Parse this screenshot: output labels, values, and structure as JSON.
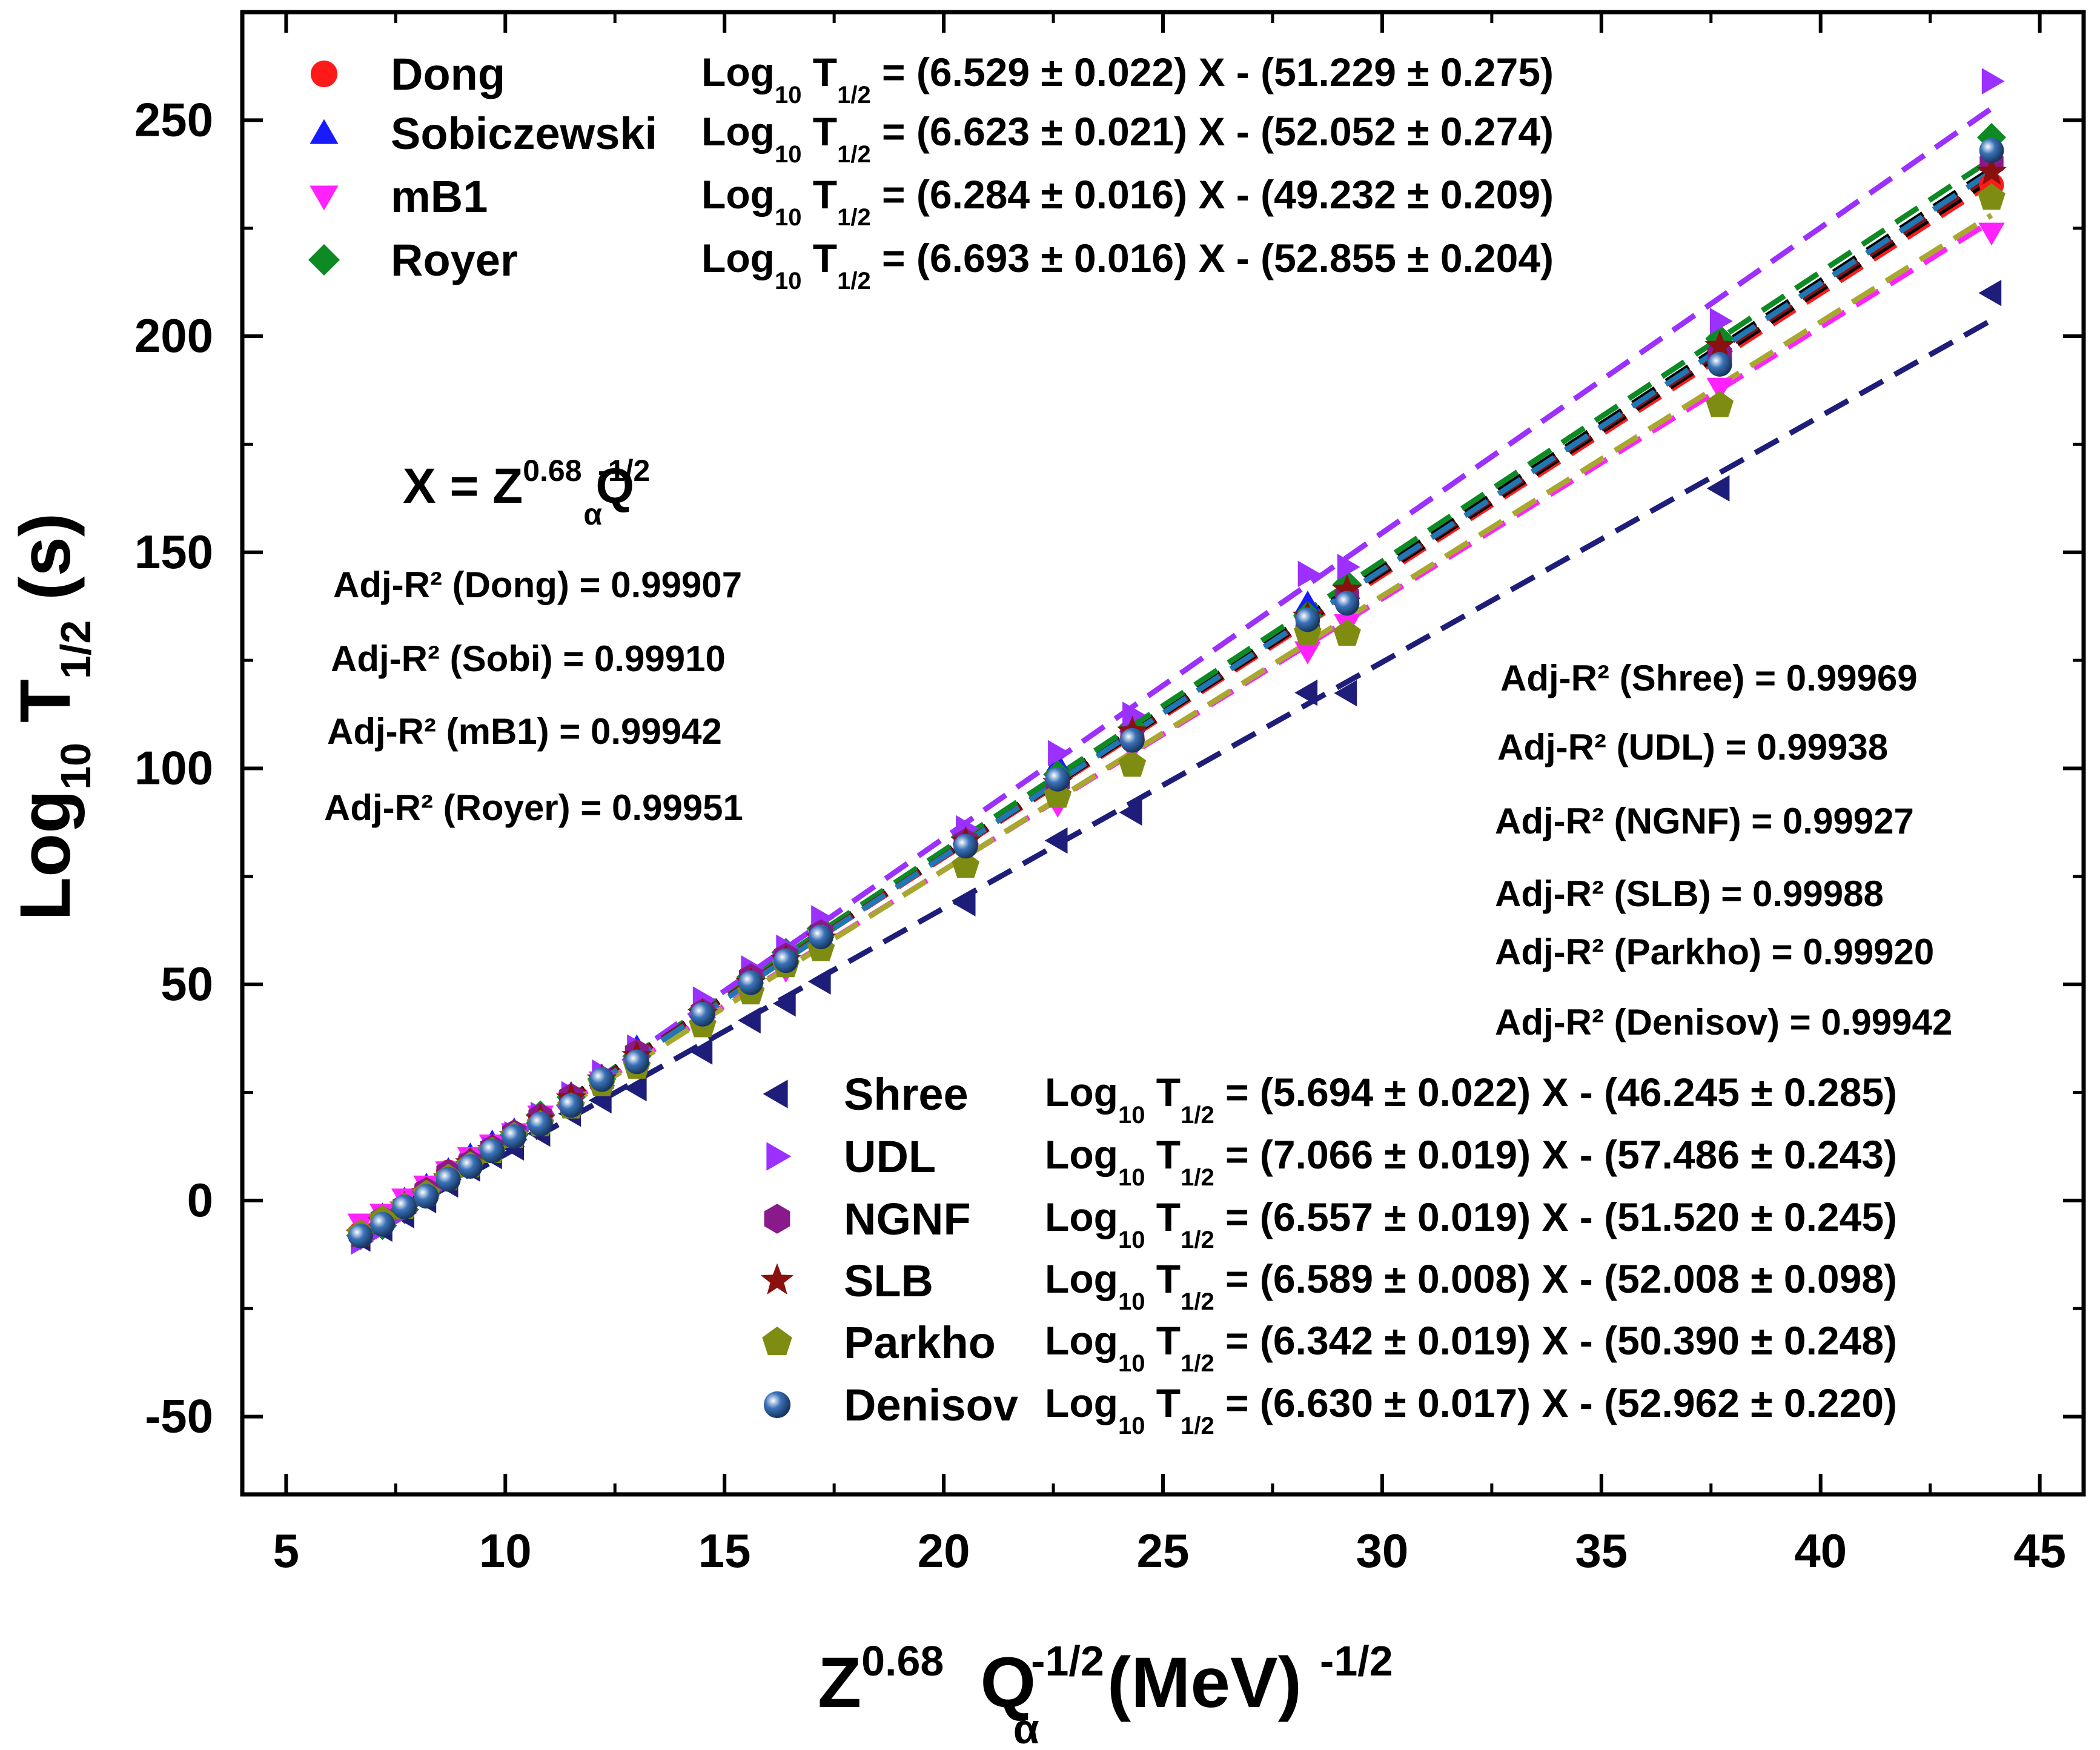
{
  "chart_data": {
    "type": "scatter",
    "xlabel": {
      "base": "Z",
      "sup1": "0.68",
      "mid": "Q",
      "sub": "α",
      "sup2": "-1/2",
      "unit": "(MeV)",
      "sup3": "-1/2"
    },
    "ylabel": {
      "base": "Log",
      "sub1": "10",
      "mid": " T",
      "sub2": "1/2",
      "tail": " (s)"
    },
    "xlim": [
      4,
      46
    ],
    "ylim": [
      -68,
      275
    ],
    "x_ticks": [
      5,
      10,
      15,
      20,
      25,
      30,
      35,
      40,
      45
    ],
    "x_tick_labels": [
      "5",
      "10",
      "15",
      "20",
      "25",
      "30",
      "35",
      "40",
      "45"
    ],
    "y_ticks": [
      -50,
      0,
      50,
      100,
      150,
      200,
      250
    ],
    "y_tick_labels": [
      "-50",
      "0",
      "50",
      "100",
      "150",
      "200",
      "250"
    ],
    "x_values": [
      6.7,
      7.2,
      7.7,
      8.2,
      8.7,
      9.2,
      9.7,
      10.2,
      10.8,
      11.5,
      12.2,
      13.0,
      14.5,
      15.6,
      16.4,
      17.2,
      20.5,
      22.6,
      24.3,
      28.3,
      29.2,
      37.7,
      43.9
    ],
    "grid": false,
    "legend_position": "top-left and bottom",
    "formula": {
      "lhs": "X = Z",
      "sup1": "0.68",
      "mid": " Q",
      "sub": "α",
      "sup2": "-1/2"
    },
    "fit_prefix": {
      "base": "Log",
      "sub1": "10",
      "mid": " T",
      "sub2": "1/2"
    },
    "series": [
      {
        "name": "Dong",
        "color": "#ff1a1a",
        "line_color": "#ff1a1a",
        "marker": "circle",
        "legend_group": "top",
        "slope": 6.529,
        "intercept": -51.229,
        "fit": "= (6.529 ± 0.022)  X - (51.229 ± 0.275)",
        "adj_r2": "Adj-R² (Dong) = 0.99907",
        "values": [
          -7.5,
          -4.7,
          -1.6,
          2.6,
          6.6,
          9.5,
          12.3,
          15.5,
          19.2,
          23.8,
          27.9,
          32.6,
          43.4,
          51.2,
          56.1,
          61.2,
          82.6,
          96.7,
          107.0,
          132.6,
          139.5,
          194.9,
          235.0
        ]
      },
      {
        "name": "Sobiczewski",
        "color": "#1a1aff",
        "line_color": "#000000",
        "marker": "triangle-up",
        "legend_group": "top",
        "slope": 6.623,
        "intercept": -52.052,
        "fit": "= (6.623 ± 0.021)  X - (52.052 ± 0.274)",
        "adj_r2": "Adj-R² (Sobi) = 0.99910",
        "values": [
          -6.4,
          -3.5,
          0.2,
          3.4,
          7.0,
          10.4,
          13.4,
          16.2,
          19.9,
          24.6,
          28.7,
          35.4,
          44.6,
          52.5,
          57.1,
          63.1,
          84.7,
          100.9,
          110.6,
          138.1,
          141.5,
          198.7,
          241.0
        ]
      },
      {
        "name": "mB1",
        "color": "#ff22ff",
        "line_color": "#ff22ff",
        "marker": "triangle-down",
        "legend_group": "top",
        "slope": 6.284,
        "intercept": -49.232,
        "fit": "= (6.284 ± 0.016)  X - (49.232 ± 0.209)",
        "adj_r2": "Adj-R² (mB1) = 0.99942",
        "values": [
          -5.3,
          -3.0,
          0.5,
          3.5,
          6.8,
          10.1,
          13.0,
          15.6,
          19.7,
          22.9,
          27.6,
          31.3,
          41.2,
          49.6,
          53.4,
          59.0,
          80.2,
          91.6,
          104.5,
          127.1,
          133.4,
          188.1,
          224.0
        ]
      },
      {
        "name": "Royer",
        "color": "#0e8a24",
        "line_color": "#0e8a24",
        "marker": "diamond",
        "legend_group": "top",
        "slope": 6.693,
        "intercept": -52.855,
        "fit": "= (6.693 ± 0.016)  X - (52.855 ± 0.204)",
        "adj_r2": "Adj-R² (Royer) = 0.99951",
        "values": [
          -8.1,
          -5.8,
          -2.1,
          2.0,
          5.9,
          9.0,
          11.9,
          15.2,
          19.8,
          23.9,
          28.1,
          33.4,
          44.2,
          51.7,
          57.4,
          62.9,
          84.2,
          98.6,
          109.5,
          135.4,
          142.6,
          199.4,
          246.0
        ]
      },
      {
        "name": "Shree",
        "color": "#1e1e7a",
        "line_color": "#1e1e7a",
        "marker": "triangle-left",
        "legend_group": "bottom",
        "slope": 5.694,
        "intercept": -46.245,
        "fit": "= (5.694 ± 0.022)  X - (46.245 ± 0.285)",
        "adj_r2": "Adj-R² (Shree) = 0.99969",
        "values": [
          -8.8,
          -6.5,
          -3.4,
          0.1,
          3.7,
          7.4,
          10.3,
          12.3,
          15.5,
          20.1,
          23.2,
          26.0,
          34.5,
          41.7,
          45.6,
          50.7,
          68.8,
          83.3,
          89.8,
          117.5,
          117.4,
          164.8,
          210.0
        ]
      },
      {
        "name": "UDL",
        "color": "#9b30ff",
        "line_color": "#9b30ff",
        "marker": "triangle-right",
        "legend_group": "bottom",
        "slope": 7.066,
        "intercept": -57.486,
        "fit": "= (7.066 ± 0.019)  X - (57.486 ± 0.243)",
        "adj_r2": "Adj-R² (UDL) = 0.99938",
        "values": [
          -9.5,
          -6.3,
          -2.6,
          1.6,
          5.2,
          8.1,
          11.7,
          15.3,
          19.8,
          24.6,
          29.6,
          35.4,
          46.5,
          53.7,
          58.5,
          65.3,
          86.1,
          103.5,
          112.4,
          145.0,
          146.6,
          203.5,
          259.0
        ]
      },
      {
        "name": "NGNF",
        "color": "#8a1a8a",
        "line_color": "#000000",
        "marker": "hexagon",
        "legend_group": "bottom",
        "slope": 6.557,
        "intercept": -51.52,
        "fit": "= (6.557 ± 0.019)  X - (51.520 ± 0.245)",
        "adj_r2": "Adj-R² (NGNF) = 0.99927",
        "values": [
          -7.8,
          -4.3,
          -1.4,
          2.3,
          6.4,
          8.7,
          12.1,
          15.6,
          19.4,
          24.0,
          27.5,
          34.2,
          43.6,
          51.7,
          56.5,
          61.9,
          83.0,
          96.9,
          107.4,
          133.3,
          139.8,
          195.7,
          240.0
        ]
      },
      {
        "name": "SLB",
        "color": "#8b1010",
        "line_color": "#8b1010",
        "marker": "star",
        "legend_group": "bottom",
        "slope": 6.589,
        "intercept": -52.008,
        "fit": "= (6.589 ± 0.008)  X - (52.008 ± 0.098)",
        "adj_r2": "Adj-R² (SLB) = 0.99988",
        "values": [
          -7.9,
          -5.0,
          -1.4,
          1.7,
          5.1,
          8.6,
          11.7,
          14.9,
          18.7,
          23.6,
          28.0,
          33.4,
          43.1,
          50.3,
          55.6,
          60.6,
          83.0,
          96.6,
          108.5,
          135.1,
          141.3,
          197.7,
          238.0
        ]
      },
      {
        "name": "Parkho",
        "color": "#7f8c12",
        "line_color": "#a8a830",
        "marker": "pentagon",
        "legend_group": "bottom",
        "slope": 6.342,
        "intercept": -50.39,
        "fit": "= (6.342 ± 0.019)  X - (50.390 ± 0.248)",
        "adj_r2": "Adj-R² (Parkho) = 0.99920",
        "values": [
          -7.7,
          -4.4,
          -1.5,
          1.5,
          5.2,
          8.1,
          11.4,
          14.9,
          17.6,
          21.7,
          26.9,
          30.9,
          40.5,
          48.1,
          54.4,
          58.1,
          77.4,
          93.6,
          100.8,
          131.3,
          131.1,
          184.0,
          232.0
        ]
      },
      {
        "name": "Denisov",
        "color": "#3a72b8",
        "line_color": "#1f77b4",
        "marker": "sphere",
        "legend_group": "bottom",
        "slope": 6.63,
        "intercept": -52.962,
        "fit": "= (6.630 ± 0.017)  X - (52.962 ± 0.220)",
        "adj_r2": "Adj-R² (Denisov) = 0.99942",
        "values": [
          -8.2,
          -5.5,
          -1.5,
          1.0,
          4.9,
          7.9,
          11.5,
          14.8,
          17.7,
          22.0,
          28.0,
          32.1,
          43.1,
          50.4,
          55.5,
          61.0,
          82.0,
          97.5,
          106.5,
          134.4,
          138.2,
          193.5,
          243.0
        ]
      }
    ]
  }
}
